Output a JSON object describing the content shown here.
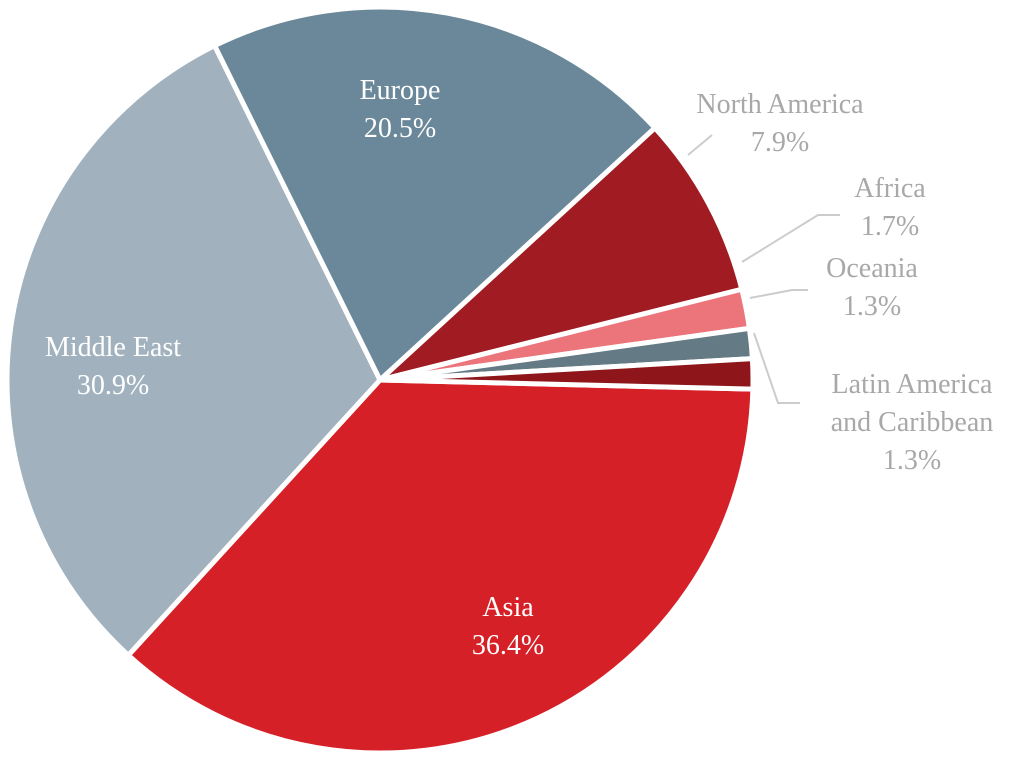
{
  "chart_data": {
    "type": "pie",
    "title": "",
    "slices": [
      {
        "label": "Asia",
        "value_text": "36.4%",
        "value": 36.4,
        "color": "#d62027"
      },
      {
        "label": "Middle East",
        "value_text": "30.9%",
        "value": 30.9,
        "color": "#a1b2be"
      },
      {
        "label": "Europe",
        "value_text": "20.5%",
        "value": 20.5,
        "color": "#6a8899"
      },
      {
        "label": "North America",
        "value_text": "7.9%",
        "value": 7.9,
        "color": "#a01c22"
      },
      {
        "label": "Africa",
        "value_text": "1.7%",
        "value": 1.7,
        "color": "#ec747b"
      },
      {
        "label": "Oceania",
        "value_text": "1.3%",
        "value": 1.3,
        "color": "#647a84"
      },
      {
        "label": "Latin America and Caribbean",
        "label_lines": [
          "Latin America",
          "and Caribbean"
        ],
        "value_text": "1.3%",
        "value": 1.3,
        "color": "#8e1519"
      }
    ],
    "label_colors": {
      "inside": "#ffffff",
      "outside": "#a8a8a8",
      "leader": "#cccccc"
    }
  }
}
